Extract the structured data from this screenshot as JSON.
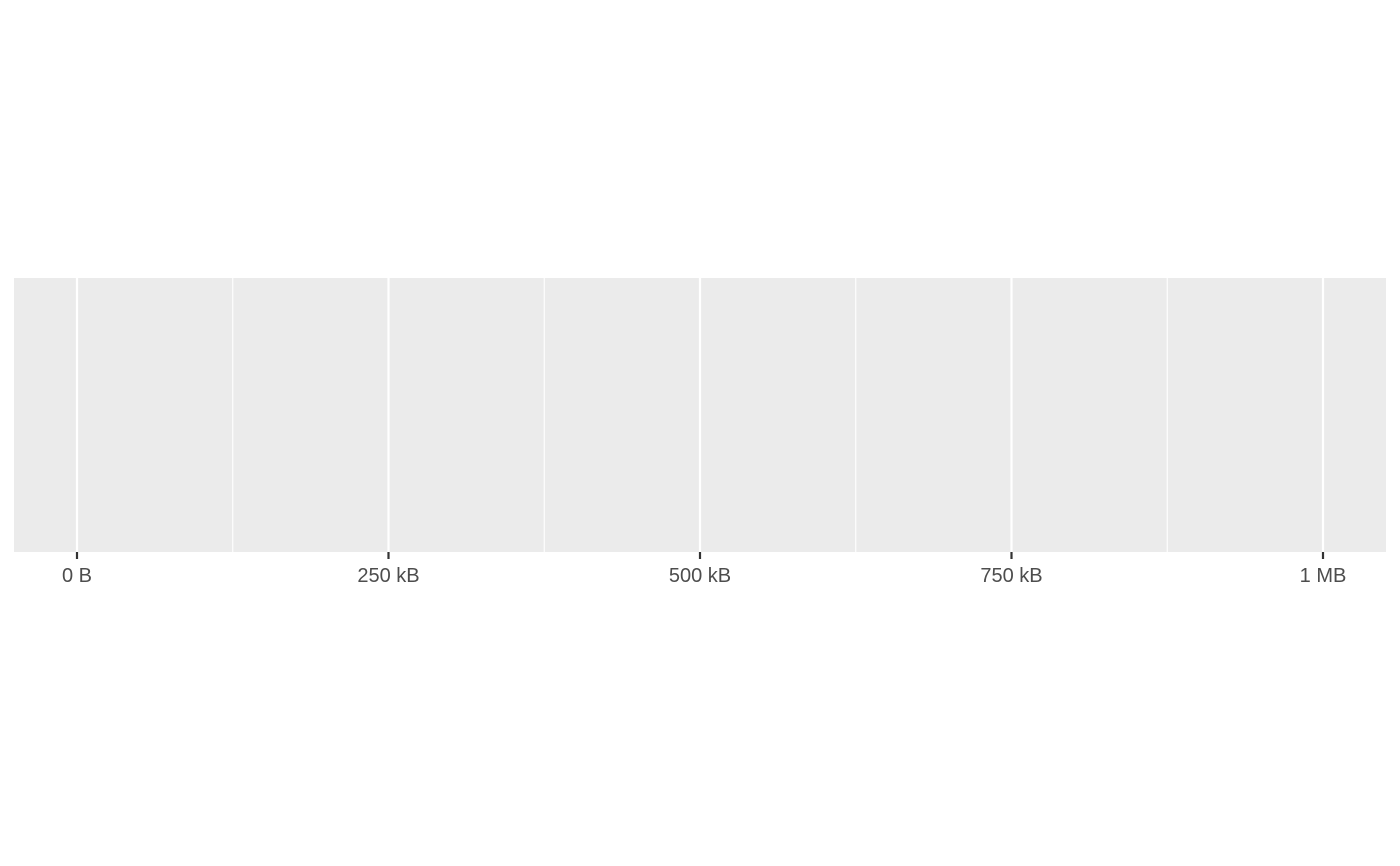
{
  "chart_data": {
    "type": "scatter",
    "title": "",
    "xlabel": "",
    "ylabel": "",
    "x_unit": "bytes",
    "xlim": [
      -100000,
      1000000
    ],
    "major_breaks": [
      0,
      250000,
      500000,
      750000,
      1000000
    ],
    "tick_labels": [
      "0 B",
      "250 kB",
      "500 kB",
      "750 kB",
      "1 MB"
    ],
    "minor_breaks": [
      125000,
      375000,
      625000,
      875000
    ],
    "series": [],
    "grid": true,
    "legend": "none",
    "colors": {
      "panel_background": "#ebebeb",
      "grid_line": "#ffffff",
      "tick_mark": "#333333",
      "tick_label": "#4d4d4d"
    }
  }
}
